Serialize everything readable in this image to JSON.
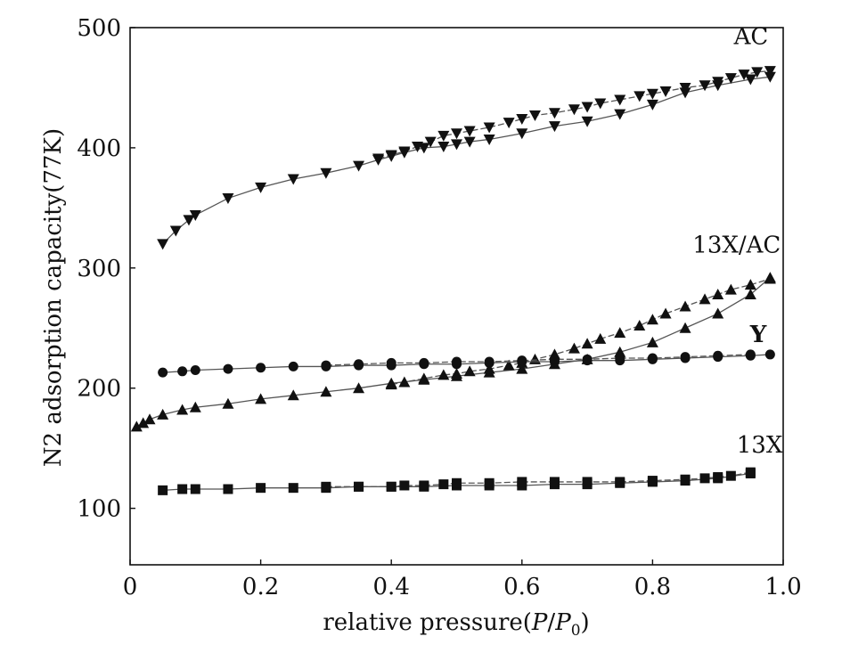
{
  "chart_data": {
    "type": "line",
    "xlabel": "relative pressure",
    "xlabel_suffix_open": "(",
    "xlabel_P": "P",
    "xlabel_slash": "/",
    "xlabel_P0_base": "P",
    "xlabel_P0_sub": "0",
    "xlabel_suffix_close": ")",
    "ylabel": "N2 adsorption capacity(77K)",
    "xlim": [
      0,
      1.0
    ],
    "ylim": [
      53,
      500
    ],
    "xticks": [
      {
        "value": 0,
        "label": "0"
      },
      {
        "value": 0.2,
        "label": "0.2"
      },
      {
        "value": 0.4,
        "label": "0.4"
      },
      {
        "value": 0.6,
        "label": "0.6"
      },
      {
        "value": 0.8,
        "label": "0.8"
      },
      {
        "value": 1.0,
        "label": "1.0"
      }
    ],
    "yticks": [
      {
        "value": 100,
        "label": "100"
      },
      {
        "value": 200,
        "label": "200"
      },
      {
        "value": 300,
        "label": "300"
      },
      {
        "value": 400,
        "label": "400"
      },
      {
        "value": 500,
        "label": "500"
      }
    ],
    "grid": false,
    "series": [
      {
        "name": "AC",
        "marker": "triangle-down",
        "color": "#111111",
        "adsorption": {
          "x": [
            0.05,
            0.07,
            0.09,
            0.1,
            0.15,
            0.2,
            0.25,
            0.3,
            0.35,
            0.38,
            0.4,
            0.42,
            0.45,
            0.48,
            0.5,
            0.52,
            0.55,
            0.6,
            0.65,
            0.7,
            0.75,
            0.8,
            0.85,
            0.9,
            0.95,
            0.98
          ],
          "y": [
            320,
            331,
            340,
            344,
            358,
            367,
            374,
            379,
            385,
            390,
            393,
            396,
            400,
            401,
            403,
            405,
            407,
            412,
            418,
            422,
            428,
            436,
            446,
            452,
            457,
            459
          ]
        },
        "desorption": {
          "x": [
            0.38,
            0.4,
            0.42,
            0.44,
            0.46,
            0.48,
            0.5,
            0.52,
            0.55,
            0.58,
            0.6,
            0.62,
            0.65,
            0.68,
            0.7,
            0.72,
            0.75,
            0.78,
            0.8,
            0.82,
            0.85,
            0.88,
            0.9,
            0.92,
            0.94,
            0.96,
            0.98
          ],
          "y": [
            391,
            394,
            397,
            401,
            405,
            410,
            412,
            414,
            417,
            421,
            424,
            427,
            429,
            432,
            434,
            437,
            440,
            443,
            445,
            447,
            450,
            452,
            455,
            458,
            461,
            463,
            464
          ]
        },
        "label_position": "upper-right"
      },
      {
        "name": "13X/AC",
        "marker": "triangle-up",
        "color": "#111111",
        "adsorption": {
          "x": [
            0.01,
            0.02,
            0.03,
            0.05,
            0.08,
            0.1,
            0.15,
            0.2,
            0.25,
            0.3,
            0.35,
            0.4,
            0.45,
            0.5,
            0.55,
            0.6,
            0.65,
            0.7,
            0.75,
            0.8,
            0.85,
            0.9,
            0.95,
            0.98
          ],
          "y": [
            168,
            171,
            174,
            178,
            182,
            184,
            187,
            191,
            194,
            197,
            200,
            204,
            207,
            210,
            213,
            216,
            220,
            224,
            230,
            238,
            250,
            262,
            278,
            292
          ]
        },
        "desorption": {
          "x": [
            0.4,
            0.42,
            0.45,
            0.48,
            0.5,
            0.52,
            0.55,
            0.58,
            0.6,
            0.62,
            0.65,
            0.68,
            0.7,
            0.72,
            0.75,
            0.78,
            0.8,
            0.82,
            0.85,
            0.88,
            0.9,
            0.92,
            0.95,
            0.98
          ],
          "y": [
            203,
            205,
            208,
            211,
            212,
            214,
            216,
            219,
            221,
            224,
            228,
            233,
            237,
            241,
            246,
            252,
            257,
            262,
            268,
            274,
            278,
            282,
            286,
            291
          ]
        },
        "label_position": "upper-right"
      },
      {
        "name": "Y",
        "marker": "circle",
        "color": "#111111",
        "adsorption": {
          "x": [
            0.05,
            0.08,
            0.1,
            0.15,
            0.2,
            0.25,
            0.3,
            0.35,
            0.4,
            0.45,
            0.5,
            0.55,
            0.6,
            0.65,
            0.7,
            0.75,
            0.8,
            0.85,
            0.9,
            0.95,
            0.98
          ],
          "y": [
            213,
            214,
            215,
            216,
            217,
            218,
            218,
            219,
            219,
            220,
            220,
            221,
            222,
            222,
            223,
            223,
            224,
            225,
            226,
            227,
            228
          ]
        },
        "desorption": {
          "x": [
            0.3,
            0.35,
            0.4,
            0.45,
            0.5,
            0.55,
            0.6,
            0.65,
            0.7,
            0.75,
            0.8,
            0.85,
            0.9,
            0.95
          ],
          "y": [
            219,
            220,
            221,
            221,
            222,
            222,
            223,
            224,
            224,
            225,
            225,
            226,
            227,
            228
          ]
        },
        "label_position": "right"
      },
      {
        "name": "13X",
        "marker": "square",
        "color": "#111111",
        "adsorption": {
          "x": [
            0.05,
            0.08,
            0.1,
            0.15,
            0.2,
            0.25,
            0.3,
            0.35,
            0.4,
            0.45,
            0.5,
            0.55,
            0.6,
            0.65,
            0.7,
            0.75,
            0.8,
            0.85,
            0.9,
            0.95
          ],
          "y": [
            115,
            116,
            116,
            116,
            117,
            117,
            117,
            118,
            118,
            118,
            119,
            119,
            119,
            120,
            120,
            121,
            122,
            123,
            125,
            129
          ]
        },
        "desorption": {
          "x": [
            0.3,
            0.35,
            0.4,
            0.42,
            0.45,
            0.48,
            0.5,
            0.55,
            0.6,
            0.65,
            0.7,
            0.75,
            0.8,
            0.85,
            0.88,
            0.9,
            0.92,
            0.95
          ],
          "y": [
            118,
            118,
            118,
            119,
            119,
            120,
            121,
            121,
            122,
            122,
            122,
            122,
            123,
            124,
            125,
            126,
            127,
            130
          ]
        },
        "label_position": "upper-right"
      }
    ]
  }
}
